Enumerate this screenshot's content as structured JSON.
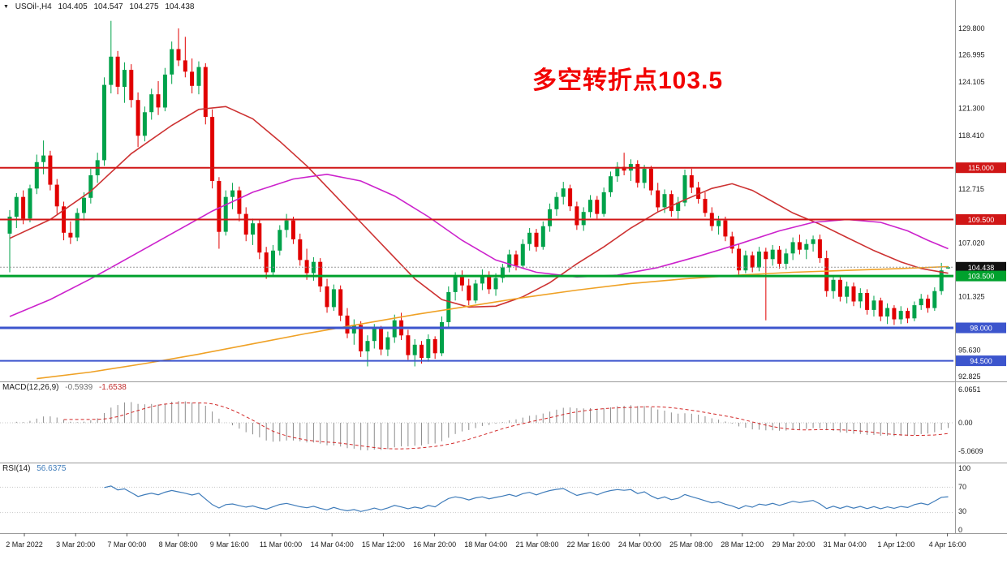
{
  "header": {
    "symbol_period": "USOil-,H4",
    "open": "104.405",
    "high": "104.547",
    "low": "104.275",
    "close": "104.438"
  },
  "annotation": {
    "text": "多空转折点103.5",
    "color": "#f20000"
  },
  "colors": {
    "bull": "#00a24a",
    "bear": "#e10000",
    "macd_hist": "#8c8c8c",
    "macd_signal": "#d22828",
    "rsi_line": "#3f7cba",
    "separator": "#9a9a9a",
    "axis_text": "#1a1a1a"
  },
  "price_axis": {
    "tick_labels": [
      {
        "text": "129.800",
        "price": 129.8
      },
      {
        "text": "126.995",
        "price": 126.995
      },
      {
        "text": "124.105",
        "price": 124.105
      },
      {
        "text": "121.300",
        "price": 121.3
      },
      {
        "text": "118.410",
        "price": 118.41
      },
      {
        "text": "112.715",
        "price": 112.715
      },
      {
        "text": "107.020",
        "price": 107.02
      },
      {
        "text": "101.325",
        "price": 101.325
      },
      {
        "text": "95.630",
        "price": 95.63
      },
      {
        "text": "92.825",
        "price": 92.825
      }
    ],
    "badges": [
      {
        "text": "115.000",
        "price": 115.0,
        "bg": "#d01616",
        "fg": "#ffffff"
      },
      {
        "text": "109.500",
        "price": 109.5,
        "bg": "#d01616",
        "fg": "#ffffff"
      },
      {
        "text": "104.438",
        "price": 104.438,
        "bg": "#111111",
        "fg": "#ffffff"
      },
      {
        "text": "103.500",
        "price": 103.5,
        "bg": "#00a12d",
        "fg": "#ffffff"
      },
      {
        "text": "98.000",
        "price": 98.0,
        "bg": "#3c55cd",
        "fg": "#ffffff"
      },
      {
        "text": "94.500",
        "price": 94.5,
        "bg": "#3c55cd",
        "fg": "#ffffff"
      }
    ]
  },
  "panels": {
    "macd": {
      "label": "MACD(12,26,9)",
      "value_main": "-0.5939",
      "value_signal": "-1.6538",
      "axis_labels": [
        "6.0651",
        "0.00",
        "-5.0609"
      ]
    },
    "rsi": {
      "label": "RSI(14)",
      "value": "56.6375",
      "axis_labels": [
        "100",
        "70",
        "30",
        "0"
      ]
    }
  },
  "chart_data": {
    "type": "candlestick",
    "symbol": "USOil-",
    "timeframe": "H4",
    "title": "USOil- H4 crude oil chart with 多空转折点103.5 annotation",
    "ylim": [
      92.825,
      129.8
    ],
    "x_labels": [
      "2 Mar 2022",
      "3 Mar 20:00",
      "7 Mar 00:00",
      "8 Mar 08:00",
      "9 Mar 16:00",
      "11 Mar 00:00",
      "14 Mar 04:00",
      "15 Mar 12:00",
      "16 Mar 20:00",
      "18 Mar 04:00",
      "21 Mar 08:00",
      "22 Mar 16:00",
      "24 Mar 00:00",
      "25 Mar 08:00",
      "28 Mar 12:00",
      "29 Mar 20:00",
      "31 Mar 04:00",
      "1 Apr 12:00",
      "4 Apr 16:00"
    ],
    "ohlc_columns": [
      "open",
      "high",
      "low",
      "close"
    ],
    "ohlc": [
      [
        108.0,
        110.5,
        103.9,
        109.8
      ],
      [
        109.8,
        112.3,
        108.6,
        111.9
      ],
      [
        111.9,
        112.6,
        109.0,
        109.6
      ],
      [
        109.6,
        113.2,
        109.2,
        112.8
      ],
      [
        112.8,
        116.4,
        112.2,
        115.6
      ],
      [
        115.6,
        117.9,
        114.3,
        116.3
      ],
      [
        116.3,
        116.8,
        112.6,
        113.2
      ],
      [
        113.2,
        113.8,
        110.1,
        110.9
      ],
      [
        110.9,
        111.4,
        107.3,
        108.1
      ],
      [
        108.1,
        109.3,
        106.9,
        107.6
      ],
      [
        107.6,
        110.7,
        107.2,
        110.2
      ],
      [
        110.2,
        112.4,
        109.4,
        111.8
      ],
      [
        111.8,
        114.9,
        111.2,
        114.2
      ],
      [
        114.2,
        116.6,
        113.4,
        115.8
      ],
      [
        115.8,
        124.6,
        115.2,
        123.8
      ],
      [
        123.8,
        130.6,
        122.9,
        126.8
      ],
      [
        126.8,
        127.4,
        122.8,
        123.6
      ],
      [
        123.6,
        126.2,
        121.9,
        125.4
      ],
      [
        125.4,
        126.0,
        121.4,
        122.2
      ],
      [
        122.2,
        123.0,
        117.2,
        118.4
      ],
      [
        118.4,
        121.5,
        117.8,
        120.9
      ],
      [
        120.9,
        123.4,
        120.1,
        122.8
      ],
      [
        122.8,
        124.2,
        120.6,
        121.4
      ],
      [
        121.4,
        125.6,
        121.0,
        124.9
      ],
      [
        124.9,
        128.4,
        123.9,
        127.6
      ],
      [
        127.6,
        129.8,
        125.8,
        126.4
      ],
      [
        126.4,
        128.9,
        124.6,
        125.2
      ],
      [
        125.2,
        126.6,
        122.9,
        123.7
      ],
      [
        123.7,
        126.3,
        122.8,
        125.7
      ],
      [
        125.7,
        126.1,
        119.6,
        120.4
      ],
      [
        120.4,
        121.2,
        112.8,
        113.6
      ],
      [
        113.6,
        114.0,
        106.4,
        108.2
      ],
      [
        108.2,
        112.6,
        107.8,
        111.9
      ],
      [
        111.9,
        113.4,
        110.6,
        112.6
      ],
      [
        112.6,
        113.0,
        109.3,
        110.1
      ],
      [
        110.1,
        110.8,
        107.2,
        107.9
      ],
      [
        107.9,
        109.6,
        106.8,
        109.1
      ],
      [
        109.1,
        109.5,
        105.3,
        106.0
      ],
      [
        106.0,
        106.6,
        103.2,
        103.9
      ],
      [
        103.9,
        106.8,
        103.5,
        106.2
      ],
      [
        106.2,
        108.9,
        105.7,
        108.4
      ],
      [
        108.4,
        110.1,
        107.6,
        109.4
      ],
      [
        109.4,
        109.8,
        106.9,
        107.4
      ],
      [
        107.4,
        108.0,
        104.6,
        105.2
      ],
      [
        105.2,
        106.4,
        103.1,
        103.8
      ],
      [
        103.8,
        105.5,
        103.0,
        105.0
      ],
      [
        105.0,
        105.4,
        101.8,
        102.4
      ],
      [
        102.4,
        103.2,
        99.6,
        100.2
      ],
      [
        100.2,
        102.6,
        99.8,
        102.1
      ],
      [
        102.1,
        102.5,
        98.7,
        99.3
      ],
      [
        99.3,
        100.1,
        96.9,
        97.4
      ],
      [
        97.4,
        98.9,
        96.2,
        98.3
      ],
      [
        98.3,
        98.7,
        94.9,
        95.5
      ],
      [
        95.5,
        97.2,
        93.9,
        96.6
      ],
      [
        96.6,
        98.4,
        95.8,
        97.9
      ],
      [
        97.9,
        98.2,
        95.1,
        95.7
      ],
      [
        95.7,
        97.6,
        95.0,
        97.0
      ],
      [
        97.0,
        99.4,
        96.4,
        98.8
      ],
      [
        98.8,
        99.6,
        96.7,
        97.2
      ],
      [
        97.2,
        97.8,
        94.6,
        95.1
      ],
      [
        95.1,
        96.8,
        93.9,
        96.2
      ],
      [
        96.2,
        96.6,
        94.2,
        94.8
      ],
      [
        94.8,
        97.3,
        94.4,
        96.8
      ],
      [
        96.8,
        97.1,
        94.7,
        95.3
      ],
      [
        95.3,
        99.2,
        95.0,
        98.6
      ],
      [
        98.6,
        102.4,
        98.1,
        101.8
      ],
      [
        101.8,
        103.9,
        100.9,
        103.4
      ],
      [
        103.4,
        104.1,
        101.9,
        102.5
      ],
      [
        102.5,
        103.2,
        100.4,
        100.9
      ],
      [
        100.9,
        103.1,
        100.6,
        102.7
      ],
      [
        102.7,
        104.2,
        102.0,
        103.6
      ],
      [
        103.6,
        104.0,
        101.6,
        102.1
      ],
      [
        102.1,
        103.8,
        101.4,
        103.3
      ],
      [
        103.3,
        104.8,
        102.8,
        104.4
      ],
      [
        104.4,
        106.3,
        103.9,
        105.8
      ],
      [
        105.8,
        106.2,
        104.1,
        104.6
      ],
      [
        104.6,
        107.4,
        104.3,
        106.9
      ],
      [
        106.9,
        108.6,
        106.2,
        108.1
      ],
      [
        108.1,
        108.5,
        106.1,
        106.6
      ],
      [
        106.6,
        109.3,
        106.3,
        108.8
      ],
      [
        108.8,
        111.2,
        108.2,
        110.6
      ],
      [
        110.6,
        112.4,
        109.9,
        111.9
      ],
      [
        111.9,
        113.5,
        111.1,
        112.8
      ],
      [
        112.8,
        113.2,
        110.4,
        110.9
      ],
      [
        110.9,
        111.4,
        108.4,
        108.9
      ],
      [
        108.9,
        110.8,
        108.3,
        110.3
      ],
      [
        110.3,
        112.1,
        109.7,
        111.6
      ],
      [
        111.6,
        112.0,
        109.6,
        110.1
      ],
      [
        110.1,
        112.9,
        109.8,
        112.4
      ],
      [
        112.4,
        114.6,
        111.9,
        114.1
      ],
      [
        114.1,
        115.6,
        113.5,
        115.1
      ],
      [
        115.1,
        116.6,
        114.2,
        114.7
      ],
      [
        114.7,
        115.9,
        113.6,
        115.4
      ],
      [
        115.4,
        115.8,
        112.9,
        113.4
      ],
      [
        113.4,
        115.3,
        112.8,
        114.9
      ],
      [
        114.9,
        115.2,
        112.1,
        112.6
      ],
      [
        112.6,
        113.4,
        110.3,
        110.8
      ],
      [
        110.8,
        112.7,
        110.2,
        112.2
      ],
      [
        112.2,
        112.6,
        109.8,
        110.4
      ],
      [
        110.4,
        111.9,
        109.6,
        111.3
      ],
      [
        111.3,
        114.8,
        110.9,
        114.2
      ],
      [
        114.2,
        114.9,
        112.3,
        112.9
      ],
      [
        112.9,
        113.5,
        111.2,
        111.7
      ],
      [
        111.7,
        112.4,
        109.8,
        110.2
      ],
      [
        110.2,
        110.8,
        108.3,
        108.8
      ],
      [
        108.8,
        109.9,
        107.9,
        109.4
      ],
      [
        109.4,
        109.8,
        107.2,
        107.7
      ],
      [
        107.7,
        108.2,
        105.9,
        106.4
      ],
      [
        106.4,
        106.9,
        103.4,
        104.1
      ],
      [
        104.1,
        106.2,
        103.8,
        105.7
      ],
      [
        105.7,
        106.1,
        103.9,
        104.4
      ],
      [
        104.4,
        106.6,
        104.0,
        106.1
      ],
      [
        106.1,
        106.5,
        98.8,
        105.3
      ],
      [
        105.3,
        106.8,
        104.6,
        106.3
      ],
      [
        106.3,
        106.7,
        104.3,
        104.8
      ],
      [
        104.8,
        106.4,
        104.2,
        105.9
      ],
      [
        105.9,
        107.6,
        105.2,
        107.1
      ],
      [
        107.1,
        107.9,
        105.8,
        106.3
      ],
      [
        106.3,
        107.4,
        105.3,
        106.9
      ],
      [
        106.9,
        107.8,
        106.1,
        107.4
      ],
      [
        107.4,
        107.9,
        104.9,
        105.4
      ],
      [
        105.4,
        106.2,
        101.3,
        101.9
      ],
      [
        101.9,
        103.6,
        101.1,
        103.1
      ],
      [
        103.1,
        103.5,
        100.8,
        101.3
      ],
      [
        101.3,
        102.9,
        100.6,
        102.4
      ],
      [
        102.4,
        102.8,
        100.3,
        100.8
      ],
      [
        100.8,
        102.2,
        100.1,
        101.7
      ],
      [
        101.7,
        102.1,
        99.4,
        99.9
      ],
      [
        99.9,
        101.4,
        99.2,
        100.9
      ],
      [
        100.9,
        101.2,
        98.7,
        99.2
      ],
      [
        99.2,
        100.6,
        98.4,
        100.1
      ],
      [
        100.1,
        100.4,
        98.3,
        98.9
      ],
      [
        98.9,
        100.3,
        98.4,
        99.8
      ],
      [
        99.8,
        100.1,
        98.5,
        99.0
      ],
      [
        99.0,
        100.8,
        98.7,
        100.4
      ],
      [
        100.4,
        101.6,
        99.9,
        101.1
      ],
      [
        101.1,
        101.5,
        99.6,
        100.1
      ],
      [
        100.1,
        102.3,
        99.8,
        101.9
      ],
      [
        101.9,
        104.9,
        101.5,
        104.1
      ],
      [
        104.405,
        104.547,
        104.275,
        104.438
      ]
    ],
    "levels": [
      {
        "price": 115.0,
        "color": "#d01616",
        "width": 2,
        "label": "115.000"
      },
      {
        "price": 109.5,
        "color": "#d01616",
        "width": 2,
        "label": "109.500"
      },
      {
        "price": 103.5,
        "color": "#00a12d",
        "width": 3,
        "label": "103.500"
      },
      {
        "price": 98.0,
        "color": "#3c55cd",
        "width": 3,
        "label": "98.000"
      },
      {
        "price": 94.5,
        "color": "#3c55cd",
        "width": 2,
        "label": "94.500"
      }
    ],
    "current_price": 104.438,
    "moving_averages": [
      {
        "name": "ma-fast-red",
        "color": "#cd3232",
        "keypoints": [
          [
            0,
            107.5
          ],
          [
            6,
            109.5
          ],
          [
            12,
            112.5
          ],
          [
            18,
            116.5
          ],
          [
            24,
            119.5
          ],
          [
            28,
            121.2
          ],
          [
            32,
            121.5
          ],
          [
            36,
            120.2
          ],
          [
            40,
            117.8
          ],
          [
            44,
            115.2
          ],
          [
            48,
            112.2
          ],
          [
            52,
            109.2
          ],
          [
            56,
            106.2
          ],
          [
            60,
            103.2
          ],
          [
            64,
            101.0
          ],
          [
            68,
            100.2
          ],
          [
            72,
            100.3
          ],
          [
            76,
            101.3
          ],
          [
            80,
            102.8
          ],
          [
            84,
            104.8
          ],
          [
            88,
            106.6
          ],
          [
            92,
            108.6
          ],
          [
            96,
            110.3
          ],
          [
            100,
            111.6
          ],
          [
            104,
            112.8
          ],
          [
            107,
            113.3
          ],
          [
            110,
            112.6
          ],
          [
            113,
            111.4
          ],
          [
            116,
            110.2
          ],
          [
            120,
            109.0
          ],
          [
            124,
            107.6
          ],
          [
            128,
            106.2
          ],
          [
            132,
            105.0
          ],
          [
            135,
            104.3
          ],
          [
            139,
            103.8
          ]
        ]
      },
      {
        "name": "ma-mid-magenta",
        "color": "#cc22cc",
        "keypoints": [
          [
            0,
            99.2
          ],
          [
            6,
            101.0
          ],
          [
            12,
            103.2
          ],
          [
            18,
            105.6
          ],
          [
            24,
            108.0
          ],
          [
            30,
            110.4
          ],
          [
            36,
            112.4
          ],
          [
            42,
            113.8
          ],
          [
            47,
            114.3
          ],
          [
            52,
            113.6
          ],
          [
            57,
            112.0
          ],
          [
            62,
            109.8
          ],
          [
            67,
            107.3
          ],
          [
            72,
            105.2
          ],
          [
            78,
            103.9
          ],
          [
            84,
            103.4
          ],
          [
            90,
            103.6
          ],
          [
            96,
            104.4
          ],
          [
            102,
            105.6
          ],
          [
            108,
            106.9
          ],
          [
            114,
            108.3
          ],
          [
            119,
            109.2
          ],
          [
            124,
            109.5
          ],
          [
            129,
            109.2
          ],
          [
            133,
            108.3
          ],
          [
            136,
            107.3
          ],
          [
            139,
            106.4
          ]
        ]
      },
      {
        "name": "ma-slow-orange",
        "color": "#efa125",
        "keypoints": [
          [
            4,
            92.6
          ],
          [
            12,
            93.3
          ],
          [
            20,
            94.2
          ],
          [
            28,
            95.2
          ],
          [
            36,
            96.3
          ],
          [
            44,
            97.4
          ],
          [
            52,
            98.4
          ],
          [
            60,
            99.4
          ],
          [
            68,
            100.3
          ],
          [
            76,
            101.2
          ],
          [
            84,
            102.0
          ],
          [
            92,
            102.7
          ],
          [
            100,
            103.2
          ],
          [
            108,
            103.6
          ],
          [
            116,
            103.9
          ],
          [
            124,
            104.1
          ],
          [
            132,
            104.3
          ],
          [
            139,
            104.5
          ]
        ]
      }
    ],
    "indicators": {
      "macd": {
        "fast": 12,
        "slow": 26,
        "signal": 9,
        "last_main": -0.5939,
        "last_signal": -1.6538
      },
      "rsi": {
        "period": 14,
        "last": 56.6375
      }
    }
  }
}
